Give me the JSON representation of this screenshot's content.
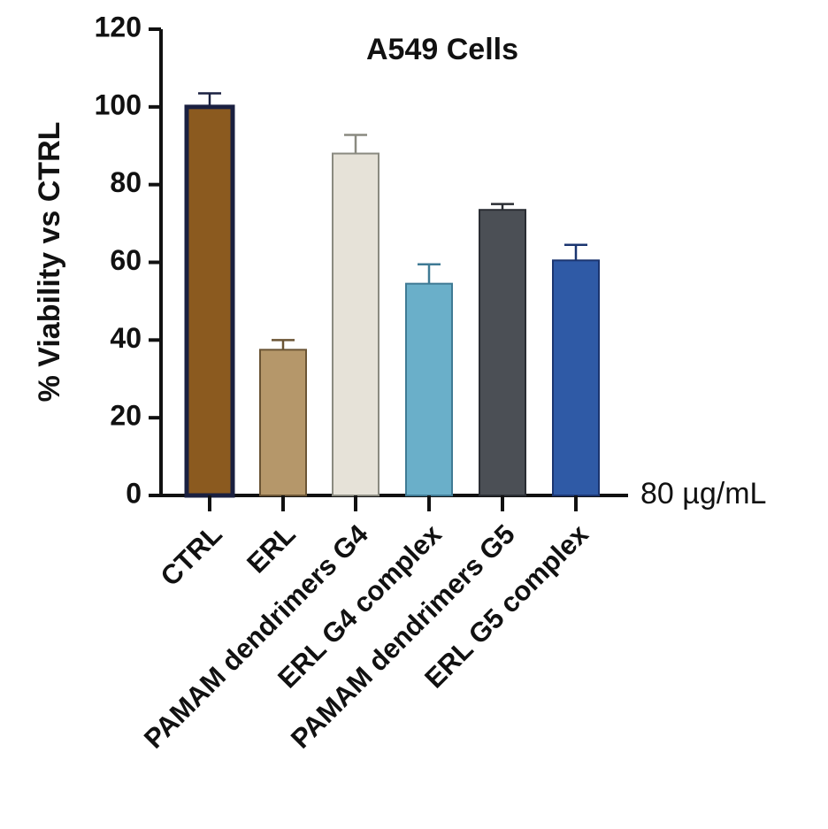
{
  "chart_data": {
    "type": "bar",
    "title": "A549 Cells",
    "ylabel": "% Viability vs CTRL",
    "annotation": "80 µg/mL",
    "categories": [
      "CTRL",
      "ERL",
      "PAMAM dendrimers G4",
      "ERL G4 complex",
      "PAMAM dendrimers G5",
      "ERL G5 complex"
    ],
    "values": [
      100,
      37.5,
      88,
      54.5,
      73.5,
      60.5
    ],
    "errors": [
      3.5,
      2.5,
      4.8,
      5,
      1.5,
      4
    ],
    "colors": [
      "#8b5a1f",
      "#b5976a",
      "#e6e2d8",
      "#6aafc9",
      "#4b4f55",
      "#2f5aa6"
    ],
    "edge_colors": [
      "#1a2040",
      "#6b5535",
      "#8a8a80",
      "#3f7a94",
      "#2a2d33",
      "#1b3570"
    ],
    "ylim": [
      0,
      120
    ],
    "yticks": [
      0,
      20,
      40,
      60,
      80,
      100,
      120
    ]
  }
}
